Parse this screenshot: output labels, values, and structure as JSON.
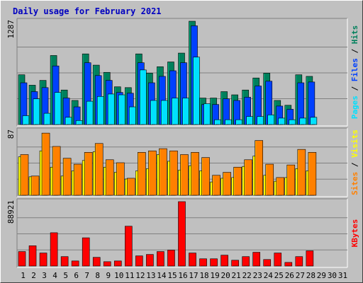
{
  "chart_data": {
    "type": "bar",
    "title": "Daily usage for February 2021",
    "categories": [
      "1",
      "2",
      "3",
      "4",
      "5",
      "6",
      "7",
      "8",
      "9",
      "10",
      "11",
      "12",
      "13",
      "14",
      "15",
      "16",
      "17",
      "18",
      "19",
      "20",
      "21",
      "22",
      "23",
      "24",
      "25",
      "26",
      "27",
      "28",
      "29",
      "30",
      "31"
    ],
    "weekend_days": [
      "6",
      "7",
      "13",
      "14",
      "20",
      "21",
      "27",
      "28"
    ],
    "colors": {
      "hits": "#00805c",
      "files": "#0040ff",
      "pages": "#00e0ff",
      "visits": "#ffff00",
      "sites": "#ff8000",
      "kbytes": "#ff0000",
      "weekday_label": "#000000",
      "weekend_label": "#00805c",
      "title": "#0000c0"
    },
    "panels": [
      {
        "name": "hits-files-pages",
        "ymax_label": "1287",
        "ymax": 1287,
        "side_labels": [
          {
            "text": "Pages",
            "color": "#00e0ff"
          },
          {
            "text": " / ",
            "color": "#000000"
          },
          {
            "text": "Files",
            "color": "#0040ff"
          },
          {
            "text": " / ",
            "color": "#000000"
          },
          {
            "text": "Hits",
            "color": "#00805c"
          }
        ],
        "series": [
          {
            "name": "Hits",
            "color": "#00805c",
            "values": [
              620,
              490,
              550,
              860,
              430,
              300,
              880,
              740,
              650,
              470,
              460,
              880,
              640,
              720,
              780,
              890,
              1287,
              330,
              330,
              410,
              370,
              430,
              580,
              640,
              300,
              240,
              620,
              600,
              0,
              0,
              0
            ]
          },
          {
            "name": "Files",
            "color": "#0040ff",
            "values": [
              520,
              410,
              460,
              730,
              330,
              220,
              770,
              610,
              550,
              400,
              390,
              770,
              520,
              600,
              670,
              770,
              1230,
              250,
              250,
              320,
              300,
              340,
              480,
              540,
              230,
              190,
              520,
              530,
              0,
              0,
              0
            ]
          },
          {
            "name": "Pages",
            "color": "#00e0ff",
            "values": [
              110,
              320,
              140,
              400,
              90,
              50,
              290,
              350,
              380,
              370,
              220,
              680,
              300,
              300,
              330,
              330,
              840,
              260,
              60,
              60,
              60,
              100,
              100,
              120,
              80,
              60,
              80,
              90,
              0,
              0,
              0
            ]
          }
        ]
      },
      {
        "name": "visits-sites",
        "ymax_label": "87",
        "ymax": 87,
        "side_labels": [
          {
            "text": "Sites",
            "color": "#ff8000"
          },
          {
            "text": " / ",
            "color": "#000000"
          },
          {
            "text": "Visits",
            "color": "#ffff00"
          }
        ],
        "series": [
          {
            "name": "Visits",
            "color": "#ffff00",
            "values": [
              52,
              25,
              60,
              38,
              26,
              33,
              47,
              59,
              38,
              31,
              22,
              33,
              36,
              55,
              46,
              34,
              40,
              33,
              18,
              23,
              24,
              39,
              53,
              27,
              19,
              24,
              36,
              33,
              0,
              0,
              0
            ]
          },
          {
            "name": "Sites",
            "color": "#ff8000",
            "values": [
              55,
              26,
              84,
              66,
              50,
              42,
              58,
              70,
              48,
              44,
              23,
              58,
              60,
              63,
              60,
              55,
              58,
              51,
              27,
              31,
              38,
              48,
              74,
              42,
              24,
              41,
              62,
              58,
              0,
              0,
              0
            ]
          }
        ]
      },
      {
        "name": "kbytes",
        "ymax_label": "88921",
        "ymax": 88921,
        "side_labels": [
          {
            "text": "KBytes",
            "color": "#ff0000"
          }
        ],
        "series": [
          {
            "name": "KBytes",
            "color": "#ff0000",
            "values": [
              20000,
              28000,
              18000,
              46000,
              13000,
              7000,
              39000,
              12000,
              6000,
              7000,
              55000,
              14000,
              16000,
              20000,
              22000,
              88921,
              18000,
              10000,
              10000,
              15000,
              8000,
              13000,
              19000,
              9000,
              18000,
              5000,
              13000,
              21000,
              0,
              0,
              0
            ]
          }
        ]
      }
    ]
  }
}
